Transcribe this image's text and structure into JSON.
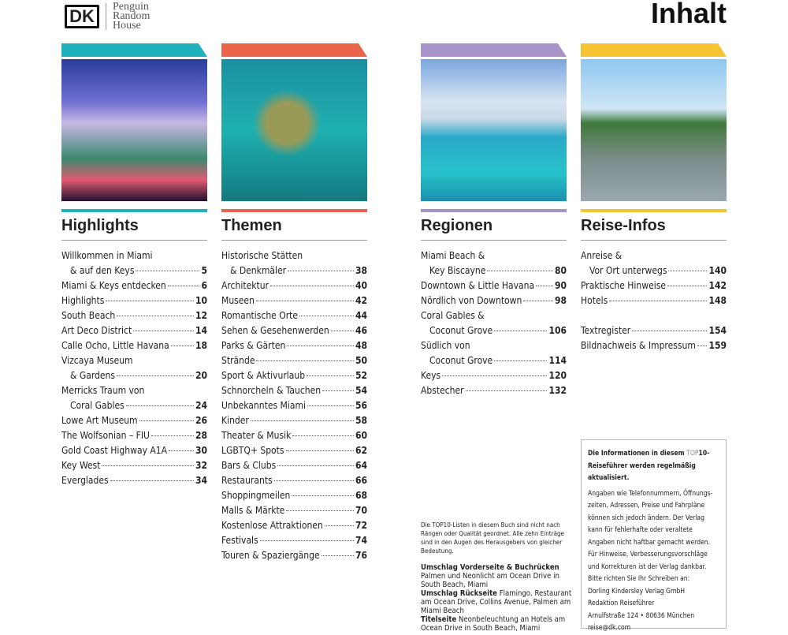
{
  "logo": {
    "dk": "DK",
    "publisher": [
      "Penguin",
      "Random",
      "House"
    ]
  },
  "page_title": "Inhalt",
  "colors": {
    "highlights": "#1fb1bc",
    "themen": "#e86549",
    "regionen": "#a793c7",
    "reise": "#f6c430"
  },
  "columns": [
    {
      "heading": "Highlights",
      "color": "#1fb1bc",
      "image": "art-deco-hotel-night",
      "items": [
        {
          "lines": [
            "Willkommen in Miami",
            "& auf den Keys"
          ],
          "page": "5"
        },
        {
          "lines": [
            "Miami & Keys entdecken"
          ],
          "page": "6"
        },
        {
          "lines": [
            "Highlights"
          ],
          "page": "10"
        },
        {
          "lines": [
            "South Beach"
          ],
          "page": "12"
        },
        {
          "lines": [
            "Art Deco District"
          ],
          "page": "14"
        },
        {
          "lines": [
            "Calle Ocho, Little Havana"
          ],
          "page": "18"
        },
        {
          "lines": [
            "Vizcaya Museum",
            "& Gardens"
          ],
          "page": "20"
        },
        {
          "lines": [
            "Merricks Traum von",
            "Coral Gables"
          ],
          "page": "24"
        },
        {
          "lines": [
            "Lowe Art Museum"
          ],
          "page": "26"
        },
        {
          "lines": [
            "The Wolfsonian – FIU"
          ],
          "page": "28"
        },
        {
          "lines": [
            "Gold Coast Highway A1A"
          ],
          "page": "30"
        },
        {
          "lines": [
            "Key West"
          ],
          "page": "32"
        },
        {
          "lines": [
            "Everglades"
          ],
          "page": "34"
        }
      ]
    },
    {
      "heading": "Themen",
      "color": "#e86549",
      "image": "underwater-statue",
      "items": [
        {
          "lines": [
            "Historische Stätten",
            "& Denkmäler"
          ],
          "page": "38"
        },
        {
          "lines": [
            "Architektur"
          ],
          "page": "40"
        },
        {
          "lines": [
            "Museen"
          ],
          "page": "42"
        },
        {
          "lines": [
            "Romantische Orte"
          ],
          "page": "44"
        },
        {
          "lines": [
            "Sehen & Gesehenwerden"
          ],
          "page": "46"
        },
        {
          "lines": [
            "Parks & Gärten"
          ],
          "page": "48"
        },
        {
          "lines": [
            "Strände"
          ],
          "page": "50"
        },
        {
          "lines": [
            "Sport & Aktivurlaub"
          ],
          "page": "52"
        },
        {
          "lines": [
            "Schnorcheln & Tauchen"
          ],
          "page": "54"
        },
        {
          "lines": [
            "Unbekanntes Miami"
          ],
          "page": "56"
        },
        {
          "lines": [
            "Kinder"
          ],
          "page": "58"
        },
        {
          "lines": [
            "Theater & Musik"
          ],
          "page": "60"
        },
        {
          "lines": [
            "LGBTQ+ Spots"
          ],
          "page": "62"
        },
        {
          "lines": [
            "Bars & Clubs"
          ],
          "page": "64"
        },
        {
          "lines": [
            "Restaurants"
          ],
          "page": "66"
        },
        {
          "lines": [
            "Shoppingmeilen"
          ],
          "page": "68"
        },
        {
          "lines": [
            "Malls & Märkte"
          ],
          "page": "70"
        },
        {
          "lines": [
            "Kostenlose Attraktionen"
          ],
          "page": "72"
        },
        {
          "lines": [
            "Festivals"
          ],
          "page": "74"
        },
        {
          "lines": [
            "Touren & Spaziergänge"
          ],
          "page": "76"
        }
      ]
    },
    {
      "heading": "Regionen",
      "color": "#a793c7",
      "image": "island-aerial",
      "items": [
        {
          "lines": [
            "Miami Beach &",
            "Key Biscayne"
          ],
          "page": "80"
        },
        {
          "lines": [
            "Downtown & Little Havana"
          ],
          "page": "90"
        },
        {
          "lines": [
            "Nördlich von Downtown"
          ],
          "page": "98"
        },
        {
          "lines": [
            "Coral Gables &",
            "Coconut Grove"
          ],
          "page": "106"
        },
        {
          "lines": [
            "Südlich von",
            "Coconut Grove"
          ],
          "page": "114"
        },
        {
          "lines": [
            "Keys"
          ],
          "page": "120"
        },
        {
          "lines": [
            "Abstecher"
          ],
          "page": "132"
        }
      ]
    },
    {
      "heading": "Reise-Infos",
      "color": "#f6c430",
      "image": "palm-street",
      "items": [
        {
          "lines": [
            "Anreise &",
            "Vor Ort unterwegs"
          ],
          "page": "140"
        },
        {
          "lines": [
            "Praktische Hinweise"
          ],
          "page": "142"
        },
        {
          "lines": [
            "Hotels"
          ],
          "page": "148"
        },
        {
          "gap": true
        },
        {
          "lines": [
            "Textregister"
          ],
          "page": "154"
        },
        {
          "lines": [
            "Bildnachweis & Impressum"
          ],
          "page": "159"
        }
      ]
    }
  ],
  "note": "Die TOP10-Listen in diesem Buch sind nicht nach Rängen oder Qualität geordnet. Alle zehn Einträge sind in den Augen des Herausgebers von gleicher Bedeutung.",
  "credits": [
    {
      "label": "Umschlag Vorderseite & Buchrücken",
      "text": "Palmen und Neonlicht am Ocean Drive in South Beach, Miami",
      "break": true
    },
    {
      "label": "Umschlag Rückseite",
      "text": "Flamingo, Restaurant am Ocean Drive, Collins Avenue, Palmen am Miami Beach"
    },
    {
      "label": "Titelseite",
      "text": "Neonbeleuchtung an Hotels am Ocean Drive in South Beach, Miami"
    }
  ],
  "infobox": {
    "heading_pre": "Die Informationen in diesem ",
    "heading_top": "TOP",
    "heading_post": "10-Reiseführer werden regelmäßig aktualisiert.",
    "body": "Angaben wie Telefonnummern, Öffnungs-zeiten, Adressen, Preise und Fahrpläne können sich jedoch ändern. Der Verlag kann für fehlerhafte oder veraltete Angaben nicht haftbar gemacht werden. Für Hinweise, Verbesserungsvorschläge und Korrekturen ist der Verlag dankbar. Bitte richten Sie Ihr Schreiben an:",
    "address": [
      "Dorling Kindersley Verlag GmbH",
      "Redaktion Reiseführer",
      "Arnulfstraße 124 • 80636 München",
      "reise@dk.com"
    ]
  }
}
